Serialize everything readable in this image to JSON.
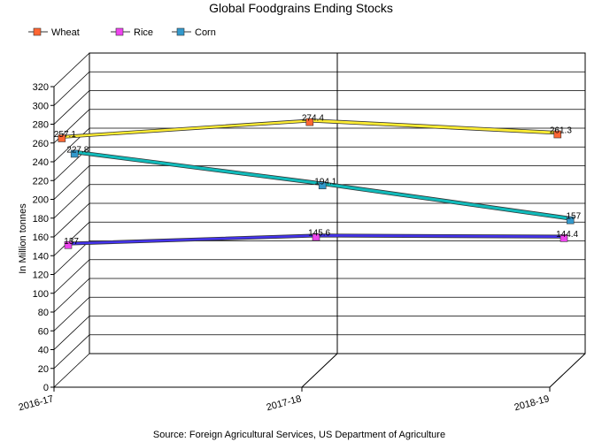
{
  "chart_data": {
    "type": "line",
    "title": "Global Foodgrains Ending Stocks",
    "ylabel": "In Million tonnes",
    "xlabel": "",
    "source": "Source: Foreign Agricultural Services, US Department of Agriculture",
    "categories": [
      "2016-17",
      "2017-18",
      "2018-19"
    ],
    "ylim": [
      0,
      320
    ],
    "ytick_step": 20,
    "three_d": true,
    "grid": true,
    "legend_position": "top-left",
    "series": [
      {
        "name": "Wheat",
        "values": [
          257.1,
          274.4,
          261.3
        ],
        "labels": [
          "257.1",
          "274.4",
          "261.3"
        ],
        "ribbon_color": "#ffee33",
        "marker_color": "#ff6633"
      },
      {
        "name": "Rice",
        "values": [
          137,
          145.6,
          144.4
        ],
        "labels": [
          "137",
          "145.6",
          "144.4"
        ],
        "ribbon_color": "#4433ee",
        "marker_color": "#ee44ee"
      },
      {
        "name": "Corn",
        "values": [
          227.8,
          194.1,
          157
        ],
        "labels": [
          "227.8",
          "194.1",
          "157"
        ],
        "ribbon_color": "#11bbbb",
        "marker_color": "#3399cc"
      }
    ]
  }
}
